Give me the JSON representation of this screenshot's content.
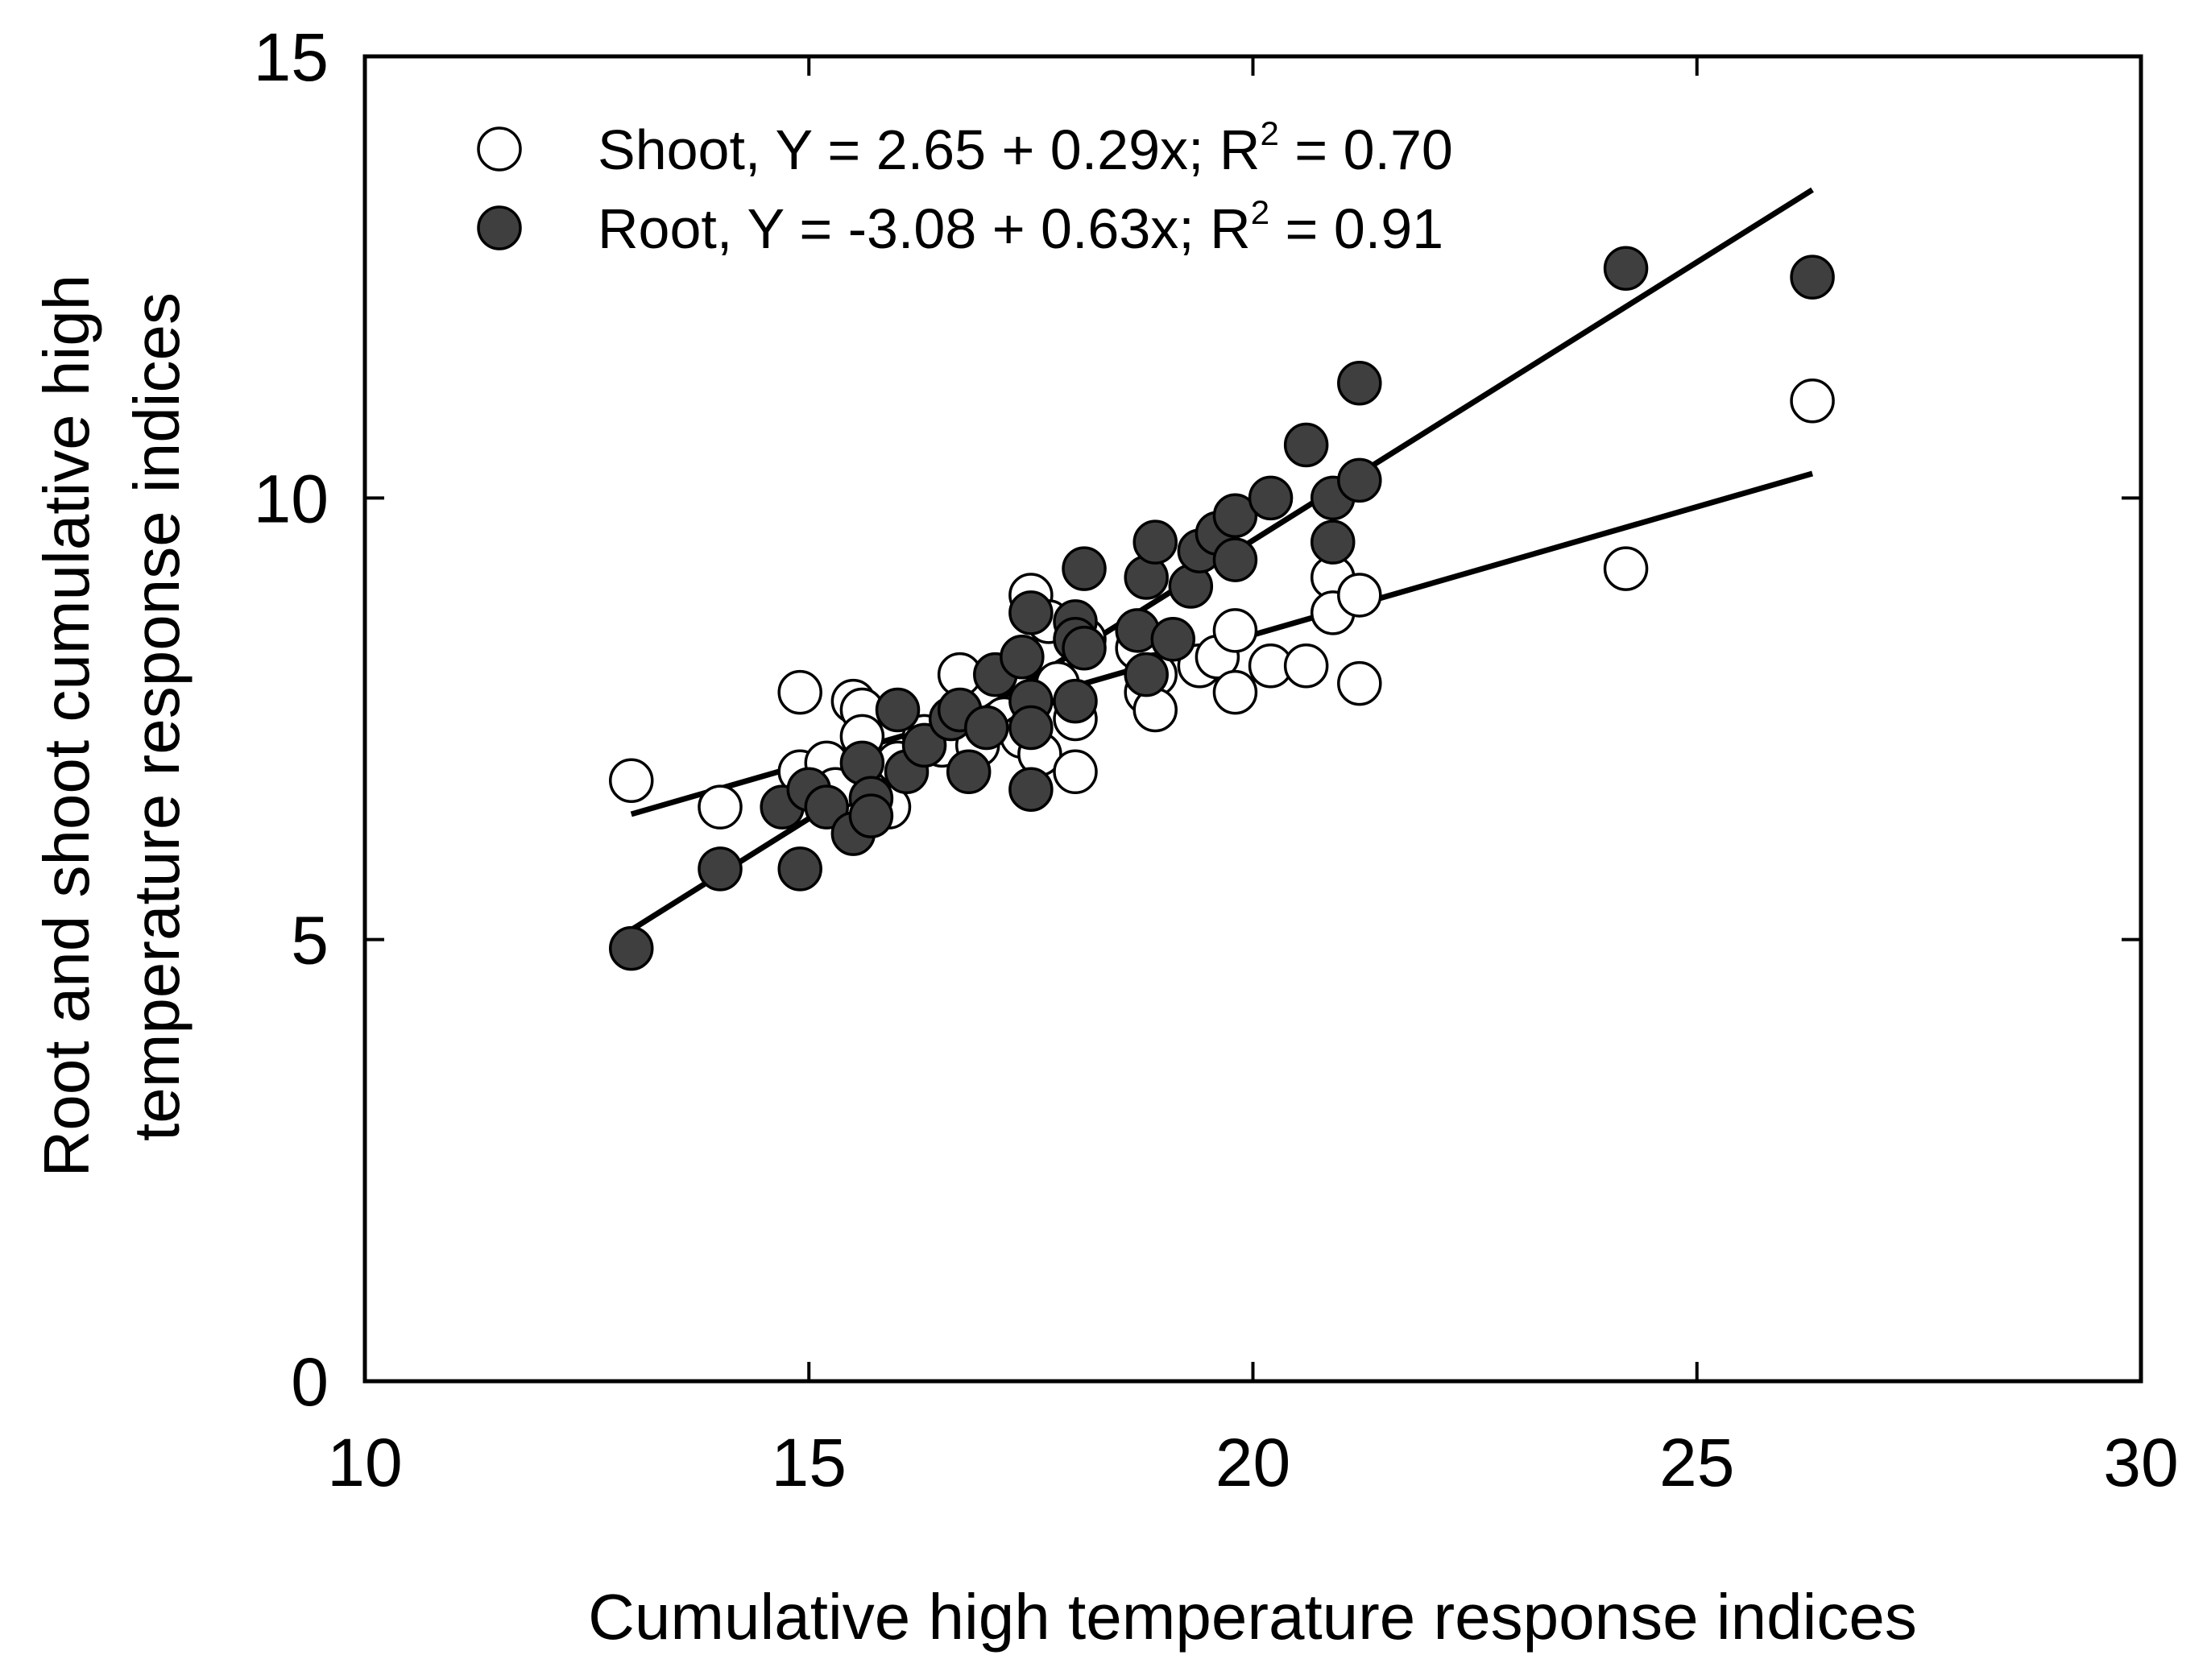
{
  "chart_data": {
    "type": "scatter",
    "xlabel": "Cumulative high temperature response indices",
    "ylabel_lines": [
      "Root and shoot cumulative high",
      "temperature response indices"
    ],
    "xlim": [
      10,
      30
    ],
    "ylim": [
      0,
      15
    ],
    "xticks": [
      10,
      15,
      20,
      25,
      30
    ],
    "yticks": [
      0,
      5,
      10,
      15
    ],
    "xtick_labels": [
      "10",
      "15",
      "20",
      "25",
      "30"
    ],
    "ytick_labels": [
      "0",
      "5",
      "10",
      "15"
    ],
    "grid": false,
    "legend_position": "top-left",
    "series": [
      {
        "name": "Shoot",
        "marker": "open-circle",
        "fill": "#ffffff",
        "stroke": "#000000",
        "legend": {
          "prefix": "Shoot, Y = 2.65 + 0.29x; R",
          "sup": "2",
          "suffix": " = 0.70"
        },
        "fit": {
          "intercept": 2.65,
          "slope": 0.29,
          "r2": 0.7,
          "x_range": [
            13.0,
            26.3
          ]
        },
        "points": [
          [
            13.0,
            6.8
          ],
          [
            14.0,
            6.5
          ],
          [
            14.9,
            7.8
          ],
          [
            14.9,
            6.9
          ],
          [
            15.2,
            7.0
          ],
          [
            15.3,
            6.7
          ],
          [
            15.5,
            7.7
          ],
          [
            15.6,
            7.6
          ],
          [
            15.6,
            7.3
          ],
          [
            15.9,
            6.5
          ],
          [
            16.0,
            7.0
          ],
          [
            16.3,
            7.3
          ],
          [
            16.5,
            7.2
          ],
          [
            16.7,
            8.0
          ],
          [
            16.9,
            7.2
          ],
          [
            17.2,
            7.5
          ],
          [
            17.4,
            7.3
          ],
          [
            17.5,
            8.9
          ],
          [
            17.6,
            7.1
          ],
          [
            17.7,
            8.6
          ],
          [
            17.8,
            7.9
          ],
          [
            18.0,
            7.5
          ],
          [
            18.0,
            6.9
          ],
          [
            18.1,
            8.4
          ],
          [
            18.7,
            8.3
          ],
          [
            18.8,
            7.8
          ],
          [
            18.9,
            8.0
          ],
          [
            18.9,
            7.6
          ],
          [
            19.4,
            8.1
          ],
          [
            19.6,
            8.2
          ],
          [
            19.8,
            8.5
          ],
          [
            19.8,
            7.8
          ],
          [
            20.2,
            8.1
          ],
          [
            20.6,
            8.1
          ],
          [
            20.9,
            9.1
          ],
          [
            20.9,
            8.7
          ],
          [
            21.2,
            8.9
          ],
          [
            21.2,
            7.9
          ],
          [
            24.2,
            9.2
          ],
          [
            26.3,
            11.1
          ]
        ]
      },
      {
        "name": "Root",
        "marker": "filled-circle",
        "fill": "#3f3f3f",
        "stroke": "#000000",
        "legend": {
          "prefix": "Root, Y = -3.08 + 0.63x; R",
          "sup": "2",
          "suffix": " = 0.91"
        },
        "fit": {
          "intercept": -3.08,
          "slope": 0.63,
          "r2": 0.91,
          "x_range": [
            13.0,
            26.3
          ]
        },
        "points": [
          [
            13.0,
            4.9
          ],
          [
            14.0,
            5.8
          ],
          [
            14.7,
            6.5
          ],
          [
            14.9,
            5.8
          ],
          [
            15.0,
            6.7
          ],
          [
            15.2,
            6.5
          ],
          [
            15.5,
            6.2
          ],
          [
            15.6,
            7.0
          ],
          [
            15.7,
            6.6
          ],
          [
            15.7,
            6.4
          ],
          [
            16.0,
            7.6
          ],
          [
            16.1,
            6.9
          ],
          [
            16.3,
            7.2
          ],
          [
            16.6,
            7.5
          ],
          [
            16.7,
            7.6
          ],
          [
            16.8,
            6.9
          ],
          [
            17.0,
            7.4
          ],
          [
            17.1,
            8.0
          ],
          [
            17.4,
            8.2
          ],
          [
            17.5,
            8.7
          ],
          [
            17.5,
            7.7
          ],
          [
            17.5,
            7.4
          ],
          [
            17.5,
            6.7
          ],
          [
            18.0,
            8.6
          ],
          [
            18.0,
            8.4
          ],
          [
            18.0,
            7.7
          ],
          [
            18.1,
            9.2
          ],
          [
            18.1,
            8.3
          ],
          [
            18.7,
            8.5
          ],
          [
            18.8,
            9.1
          ],
          [
            18.8,
            8.0
          ],
          [
            18.9,
            9.5
          ],
          [
            19.1,
            8.4
          ],
          [
            19.3,
            9.0
          ],
          [
            19.4,
            9.4
          ],
          [
            19.6,
            9.6
          ],
          [
            19.8,
            9.3
          ],
          [
            19.8,
            9.8
          ],
          [
            20.2,
            10.0
          ],
          [
            20.6,
            10.6
          ],
          [
            20.9,
            10.0
          ],
          [
            20.9,
            9.5
          ],
          [
            21.2,
            10.2
          ],
          [
            21.2,
            11.3
          ],
          [
            24.2,
            12.6
          ],
          [
            26.3,
            12.5
          ]
        ]
      }
    ]
  }
}
